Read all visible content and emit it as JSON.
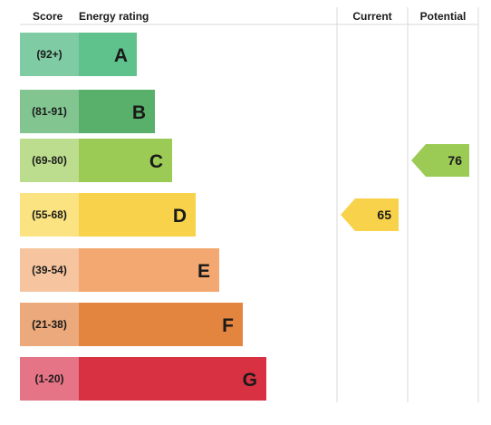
{
  "chart_data": {
    "type": "bar",
    "title": "",
    "headers": {
      "score": "Score",
      "rating": "Energy rating",
      "current": "Current",
      "potential": "Potential"
    },
    "bands": [
      {
        "letter": "A",
        "range": "(92+)",
        "color": "#5fc18c",
        "light": "#7fcba3"
      },
      {
        "letter": "B",
        "range": "(81-91)",
        "color": "#58b06a",
        "light": "#82c591"
      },
      {
        "letter": "C",
        "range": "(69-80)",
        "color": "#9bcb55",
        "light": "#bcdd8d"
      },
      {
        "letter": "D",
        "range": "(55-68)",
        "color": "#f8d24a",
        "light": "#fae380"
      },
      {
        "letter": "E",
        "range": "(39-54)",
        "color": "#f2a870",
        "light": "#f6c59f"
      },
      {
        "letter": "F",
        "range": "(21-38)",
        "color": "#e3843f",
        "light": "#eba97c"
      },
      {
        "letter": "G",
        "range": "(1-20)",
        "color": "#d83142",
        "light": "#e57487"
      }
    ],
    "current": {
      "value": 65,
      "band": "D",
      "color": "#f8d24a"
    },
    "potential": {
      "value": 76,
      "band": "C",
      "color": "#9bcb55"
    }
  }
}
